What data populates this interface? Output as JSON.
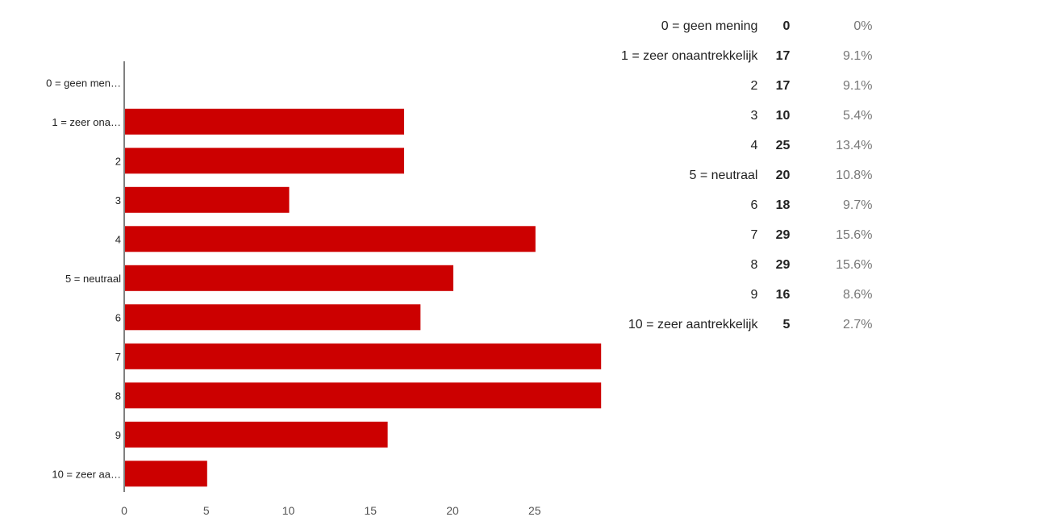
{
  "colors": {
    "bar": "#cc0000",
    "axis": "#000000",
    "tick_text": "#555555",
    "percent_text": "#777777"
  },
  "chart_data": {
    "type": "bar",
    "orientation": "horizontal",
    "categories": [
      "0 = geen men…",
      "1 = zeer ona…",
      "2",
      "3",
      "4",
      "5 = neutraal",
      "6",
      "7",
      "8",
      "9",
      "10 = zeer aa…"
    ],
    "values": [
      0,
      17,
      17,
      10,
      25,
      20,
      18,
      29,
      29,
      16,
      5
    ],
    "xticks": [
      0,
      5,
      10,
      15,
      20,
      25
    ],
    "xlim": [
      0,
      29
    ],
    "grid": false
  },
  "summary": {
    "rows": [
      {
        "label": "0 = geen mening",
        "count": "0",
        "percent": "0%"
      },
      {
        "label": "1 = zeer onaantrekkelijk",
        "count": "17",
        "percent": "9.1%"
      },
      {
        "label": "2",
        "count": "17",
        "percent": "9.1%"
      },
      {
        "label": "3",
        "count": "10",
        "percent": "5.4%"
      },
      {
        "label": "4",
        "count": "25",
        "percent": "13.4%"
      },
      {
        "label": "5 = neutraal",
        "count": "20",
        "percent": "10.8%"
      },
      {
        "label": "6",
        "count": "18",
        "percent": "9.7%"
      },
      {
        "label": "7",
        "count": "29",
        "percent": "15.6%"
      },
      {
        "label": "8",
        "count": "29",
        "percent": "15.6%"
      },
      {
        "label": "9",
        "count": "16",
        "percent": "8.6%"
      },
      {
        "label": "10 = zeer aantrekkelijk",
        "count": "5",
        "percent": "2.7%"
      }
    ]
  }
}
